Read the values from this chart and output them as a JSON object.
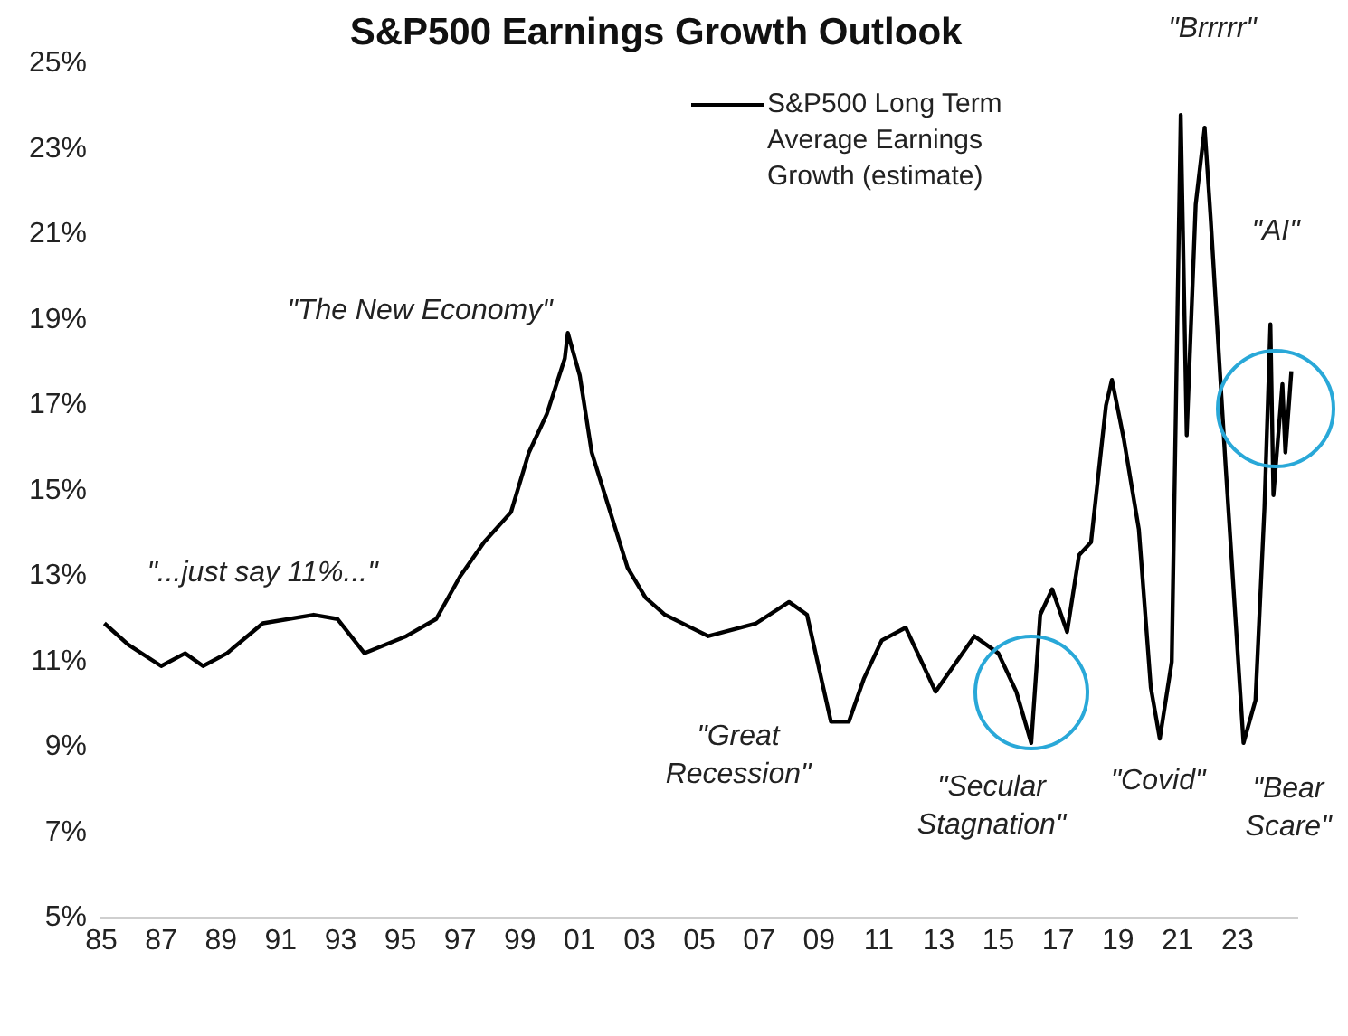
{
  "chart_data": {
    "type": "line",
    "title": "S&P500 Earnings Growth Outlook",
    "x": [
      1985.1,
      1985.9,
      1987.0,
      1987.8,
      1988.4,
      1989.2,
      1990.4,
      1992.1,
      1992.9,
      1993.8,
      1995.2,
      1996.2,
      1997.0,
      1997.8,
      1998.7,
      1999.3,
      1999.9,
      2000.5,
      2000.6,
      2001.0,
      2001.4,
      2002.6,
      2003.2,
      2003.85,
      2005.3,
      2006.9,
      2008.0,
      2008.6,
      2009.4,
      2010.0,
      2010.5,
      2011.1,
      2011.9,
      2012.9,
      2013.5,
      2014.2,
      2015.0,
      2015.6,
      2016.1,
      2016.4,
      2016.8,
      2017.3,
      2017.7,
      2018.1,
      2018.6,
      2018.8,
      2019.2,
      2019.7,
      2020.1,
      2020.4,
      2020.8,
      2021.1,
      2021.3,
      2021.6,
      2021.9,
      2022.1,
      2022.6,
      2023.2,
      2023.6,
      2023.9,
      2024.1,
      2024.2,
      2024.5,
      2024.6,
      2024.8
    ],
    "series": [
      {
        "name": "S&P500 Long Term Average Earnings Growth (estimate)",
        "color": "#000000",
        "values": [
          11.9,
          11.4,
          10.9,
          11.2,
          10.9,
          11.2,
          11.9,
          12.1,
          12.0,
          11.2,
          11.6,
          12.0,
          13.0,
          13.8,
          14.5,
          15.9,
          16.8,
          18.1,
          18.7,
          17.7,
          15.9,
          13.2,
          12.5,
          12.1,
          11.6,
          11.9,
          12.4,
          12.1,
          9.6,
          9.6,
          10.6,
          11.5,
          11.8,
          10.3,
          10.9,
          11.6,
          11.2,
          10.3,
          9.1,
          12.1,
          12.7,
          11.7,
          13.5,
          13.8,
          17.0,
          17.6,
          16.2,
          14.1,
          10.4,
          9.2,
          11.0,
          23.8,
          16.3,
          21.7,
          23.5,
          21.4,
          15.6,
          9.1,
          10.1,
          14.6,
          18.9,
          14.9,
          17.5,
          15.9,
          17.8
        ]
      }
    ],
    "xlim": [
      1985,
      2025
    ],
    "xticks": [
      {
        "value": 1985,
        "label": "85"
      },
      {
        "value": 1987,
        "label": "87"
      },
      {
        "value": 1989,
        "label": "89"
      },
      {
        "value": 1991,
        "label": "91"
      },
      {
        "value": 1993,
        "label": "93"
      },
      {
        "value": 1995,
        "label": "95"
      },
      {
        "value": 1997,
        "label": "97"
      },
      {
        "value": 1999,
        "label": "99"
      },
      {
        "value": 2001,
        "label": "01"
      },
      {
        "value": 2003,
        "label": "03"
      },
      {
        "value": 2005,
        "label": "05"
      },
      {
        "value": 2007,
        "label": "07"
      },
      {
        "value": 2009,
        "label": "09"
      },
      {
        "value": 2011,
        "label": "11"
      },
      {
        "value": 2013,
        "label": "13"
      },
      {
        "value": 2015,
        "label": "15"
      },
      {
        "value": 2017,
        "label": "17"
      },
      {
        "value": 2019,
        "label": "19"
      },
      {
        "value": 2021,
        "label": "21"
      },
      {
        "value": 2023,
        "label": "23"
      }
    ],
    "ylim": [
      5,
      25
    ],
    "yticks": [
      {
        "value": 5,
        "label": "5%"
      },
      {
        "value": 7,
        "label": "7%"
      },
      {
        "value": 9,
        "label": "9%"
      },
      {
        "value": 11,
        "label": "11%"
      },
      {
        "value": 13,
        "label": "13%"
      },
      {
        "value": 15,
        "label": "15%"
      },
      {
        "value": 17,
        "label": "17%"
      },
      {
        "value": 19,
        "label": "19%"
      },
      {
        "value": 21,
        "label": "21%"
      },
      {
        "value": 23,
        "label": "23%"
      },
      {
        "value": 25,
        "label": "25%"
      }
    ],
    "annotations": [
      "\"...just say 11%...\"",
      "\"The New Economy\"",
      "\"Great\nRecession\"",
      "\"Secular\nStagnation\"",
      "\"Covid\"",
      "\"Brrrrr\"",
      "\"AI\"",
      "\"Bear\nScare\""
    ],
    "grid": false,
    "legend": "top",
    "marker": "none",
    "line_style": "solid"
  }
}
